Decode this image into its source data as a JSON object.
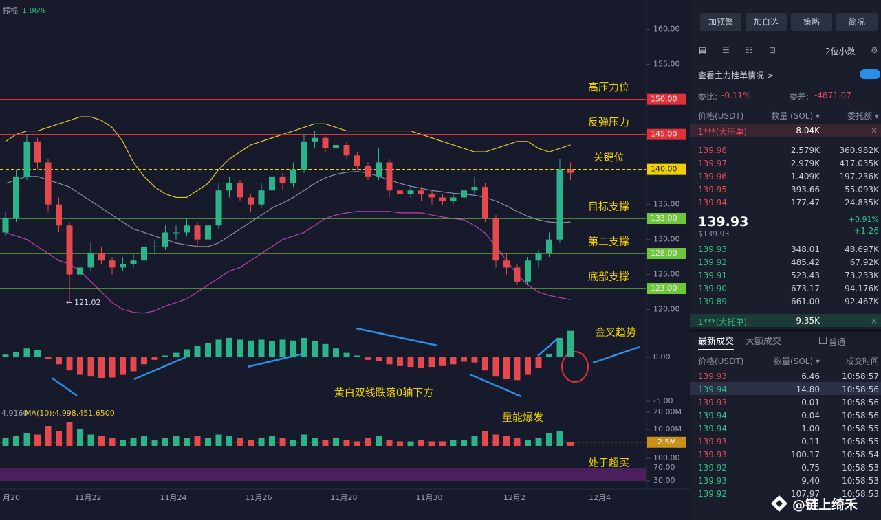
{
  "header": {
    "amplitude_label": "振幅",
    "amplitude": "1.86%"
  },
  "chart_data": [
    {
      "type": "candlestick",
      "candles": [
        [
          131,
          134,
          130.5,
          133
        ],
        [
          133,
          140,
          132.5,
          139
        ],
        [
          139,
          145,
          138.5,
          144
        ],
        [
          144,
          144.5,
          140,
          141
        ],
        [
          141,
          141.5,
          134,
          135
        ],
        [
          135,
          136,
          131,
          132
        ],
        [
          132,
          132.5,
          121.02,
          125
        ],
        [
          125,
          127,
          123.5,
          126
        ],
        [
          126,
          129.5,
          125.5,
          128
        ],
        [
          128,
          129,
          126.5,
          127
        ],
        [
          127,
          127.5,
          125,
          126
        ],
        [
          126,
          127.5,
          125.5,
          126.5
        ],
        [
          126.5,
          128,
          126,
          127
        ],
        [
          127,
          130,
          126.5,
          129
        ],
        [
          129,
          130,
          128,
          129
        ],
        [
          129,
          132,
          128.5,
          131
        ],
        [
          131,
          132,
          130,
          131
        ],
        [
          131,
          133,
          130.5,
          132
        ],
        [
          132,
          132.5,
          129,
          130
        ],
        [
          130,
          133,
          129.5,
          132
        ],
        [
          132,
          138,
          131.5,
          137
        ],
        [
          137,
          139,
          136,
          138
        ],
        [
          138,
          138.5,
          135.5,
          136
        ],
        [
          136,
          136.5,
          134,
          135
        ],
        [
          135,
          138,
          134.5,
          137
        ],
        [
          137,
          140,
          136.5,
          139
        ],
        [
          139,
          139.5,
          137,
          138
        ],
        [
          138,
          141,
          137.5,
          140
        ],
        [
          140,
          145,
          139.5,
          144
        ],
        [
          144,
          145.5,
          143,
          144.5
        ],
        [
          144.5,
          145,
          142.5,
          143
        ],
        [
          143,
          144.5,
          142,
          143.5
        ],
        [
          143.5,
          144,
          141.5,
          142
        ],
        [
          142,
          142.5,
          140,
          140.5
        ],
        [
          140.5,
          141,
          138.5,
          139
        ],
        [
          139,
          143,
          138.5,
          141
        ],
        [
          141,
          141.5,
          136,
          137
        ],
        [
          137,
          137.5,
          135.5,
          136.5
        ],
        [
          136.5,
          137.5,
          136,
          137
        ],
        [
          137,
          137.5,
          135.5,
          136.5
        ],
        [
          136.5,
          137,
          135,
          136
        ],
        [
          136,
          136.5,
          135,
          135.5
        ],
        [
          135.5,
          136.5,
          135,
          136
        ],
        [
          136,
          138,
          135.5,
          137
        ],
        [
          137,
          139,
          136.5,
          137.5
        ],
        [
          137.5,
          138,
          132.5,
          133
        ],
        [
          133,
          133.5,
          126,
          127
        ],
        [
          127,
          128,
          125,
          126
        ],
        [
          126,
          126.5,
          123.5,
          124
        ],
        [
          124,
          127.5,
          123.5,
          127
        ],
        [
          127,
          128.5,
          126,
          128
        ],
        [
          128,
          131,
          127.5,
          130
        ],
        [
          130,
          141.5,
          129.5,
          140
        ],
        [
          140,
          141,
          138.5,
          139.5
        ]
      ],
      "up_color": "#2bb38a",
      "down_color": "#e5484d",
      "series": [
        {
          "color": "#e8c832",
          "values": [
            144,
            145,
            145.5,
            145.5,
            146,
            146.5,
            147,
            147.5,
            147.5,
            147,
            146,
            144,
            141,
            139,
            137.5,
            136.5,
            136,
            136,
            137,
            138,
            140,
            141.5,
            142.5,
            143.5,
            144,
            144.5,
            145,
            145.5,
            146,
            146.5,
            146.5,
            146,
            145.5,
            145.5,
            145.5,
            145.5,
            145.5,
            145.5,
            145.5,
            145,
            144.5,
            144,
            143.5,
            143,
            142.5,
            142.5,
            143,
            143.5,
            144,
            144,
            143,
            142.5,
            143,
            143.5
          ]
        },
        {
          "color": "#8c8fa8",
          "values": [
            138,
            138.5,
            139,
            139,
            138.5,
            138,
            137.5,
            136.5,
            135.5,
            134.5,
            133.5,
            132.5,
            131.5,
            131,
            130.5,
            130,
            129.5,
            129.2,
            129,
            129,
            129.5,
            130.5,
            131.5,
            132.5,
            133.5,
            134.5,
            135.2,
            136,
            137,
            138,
            138.8,
            139.3,
            139.6,
            139.7,
            139.5,
            139,
            138.5,
            138,
            137.6,
            137.3,
            137,
            136.8,
            136.6,
            136.5,
            136.3,
            136,
            135.5,
            134.8,
            134,
            133.3,
            132.8,
            132.5,
            132.4,
            132.5
          ]
        },
        {
          "color": "#c040b0",
          "values": [
            131,
            130.5,
            130,
            129,
            128,
            127,
            126.5,
            125.5,
            124,
            122.5,
            121,
            120,
            119.6,
            119.5,
            119.8,
            120.5,
            121,
            121.5,
            122.5,
            123.5,
            124.5,
            125.5,
            126,
            127,
            128,
            129,
            130,
            130.5,
            131,
            132,
            133,
            133.5,
            133.8,
            134,
            134,
            134,
            134,
            133.8,
            133.8,
            133.8,
            133.5,
            133.2,
            133,
            132.8,
            132,
            130.9,
            129,
            127,
            125,
            123.5,
            122.5,
            122,
            121.7,
            121.4
          ]
        }
      ],
      "ylim": [
        118.1,
        163.4
      ],
      "yticks": [
        {
          "value": 160,
          "label": "160.00"
        },
        {
          "value": 155,
          "label": "155.00"
        },
        {
          "value": 135,
          "label": "135.00"
        },
        {
          "value": 130,
          "label": "130.00"
        },
        {
          "value": 125,
          "label": "125.00"
        },
        {
          "value": 120,
          "label": "120.00"
        }
      ],
      "levels": [
        {
          "value": 150,
          "label": "150.00",
          "note": "高压力位",
          "color": "#e0303a"
        },
        {
          "value": 145,
          "label": "145.00",
          "note": "反弹压力",
          "color": "#e0303a"
        },
        {
          "value": 140,
          "label": "140.00",
          "note": "关键位",
          "color": "#f0d000",
          "dashed": true
        },
        {
          "value": 133,
          "label": "133.00",
          "note": "目标支撑",
          "color": "#6cc83a"
        },
        {
          "value": 128,
          "label": "128.00",
          "note": "第二支撑",
          "color": "#6cc83a"
        },
        {
          "value": 123,
          "label": "123.00",
          "note": "底部支撑",
          "color": "#6cc83a"
        }
      ],
      "xlabels": [
        "月20",
        "11月22",
        "11月24",
        "11月26",
        "11月28",
        "11月30",
        "12月2",
        "12月4"
      ]
    },
    {
      "type": "bar",
      "values": [
        0.3,
        0.6,
        1.0,
        0.8,
        -0.2,
        -0.8,
        -1.5,
        -2.0,
        -2.2,
        -2.4,
        -2.3,
        -2.0,
        -1.6,
        -0.8,
        -0.3,
        0.2,
        0.5,
        0.9,
        1.3,
        1.6,
        2.0,
        2.2,
        2.0,
        1.9,
        2.0,
        1.8,
        2.0,
        1.9,
        2.2,
        1.8,
        1.5,
        1.0,
        0.5,
        0.2,
        -0.3,
        -0.4,
        -0.8,
        -1.0,
        -1.1,
        -1.2,
        -1.1,
        -1.0,
        -0.8,
        -0.5,
        -0.6,
        -1.5,
        -2.2,
        -2.5,
        -2.6,
        -2.0,
        -1.2,
        0.4,
        2.2,
        3.0
      ],
      "up_color": "#2bb38a",
      "down_color": "#e5484d",
      "ylim": [
        -5.47,
        3.52
      ],
      "yticks": [
        {
          "value": 0,
          "label": "0.00"
        },
        {
          "value": -5,
          "label": "-5.00"
        }
      ],
      "notes": [
        "金叉趋势",
        "黄白双线跌落0轴下方"
      ]
    },
    {
      "type": "bar",
      "values": [
        5,
        6,
        8,
        7,
        12,
        9,
        14,
        10,
        7,
        6,
        5,
        4,
        5,
        6,
        4,
        5,
        6,
        5,
        6,
        5,
        7,
        6,
        5,
        4,
        5,
        6,
        5,
        4,
        7,
        5,
        4,
        5,
        4,
        3,
        5,
        6,
        4,
        3,
        3,
        4,
        3,
        3,
        4,
        4,
        6,
        9,
        7,
        6,
        5,
        4,
        5,
        8,
        9,
        2.5
      ],
      "ylim": [
        0,
        21.6
      ],
      "yticks": [
        {
          "value": 20,
          "label": "20.00M"
        },
        {
          "value": 10,
          "label": "10.00M"
        }
      ],
      "current": {
        "value": 2.5,
        "label": "2.5M"
      },
      "ma_prefix": "4.9160",
      "ma_label": "MA(10):4,998,451.6500",
      "notes": [
        "量能爆发"
      ]
    },
    {
      "type": "band",
      "ylim": [
        19.4,
        114.9
      ],
      "yticks": [
        {
          "value": 100,
          "label": "100.00"
        },
        {
          "value": 70,
          "label": "70.00"
        },
        {
          "value": 30,
          "label": "30.00"
        }
      ],
      "notes": [
        "处于超买"
      ]
    }
  ],
  "toolbar": {
    "buttons": [
      "加预警",
      "加自选",
      "策略",
      "简况"
    ],
    "decimals": "2位小数"
  },
  "order_book": {
    "link": "查看主力挂单情况 >",
    "ratio_label": "委比:",
    "ratio": "-0.11%",
    "diff_label": "委差:",
    "diff": "-4871.07",
    "headers": [
      "价格(USDT)",
      "数量 (SOL) ▾",
      "委托额 ▾"
    ],
    "big_ask": [
      "1***(大压单)",
      "8.04K"
    ],
    "asks": [
      [
        "139.98",
        "2.579K",
        "360.982K"
      ],
      [
        "139.97",
        "2.979K",
        "417.035K"
      ],
      [
        "139.96",
        "1.409K",
        "197.236K"
      ],
      [
        "139.95",
        "393.66",
        "55.093K"
      ],
      [
        "139.94",
        "177.47",
        "24.835K"
      ]
    ],
    "last": "139.93",
    "last_usd": "$139.93",
    "change_pct": "+0.91%",
    "change": "+1.26",
    "bids": [
      [
        "139.93",
        "348.01",
        "48.697K"
      ],
      [
        "139.92",
        "485.42",
        "67.92K"
      ],
      [
        "139.91",
        "523.43",
        "73.233K"
      ],
      [
        "139.90",
        "673.17",
        "94.176K"
      ],
      [
        "139.89",
        "661.00",
        "92.467K"
      ]
    ],
    "big_bid": [
      "1***(大托单)",
      "9.35K"
    ]
  },
  "trades": {
    "tabs": [
      "最新成交",
      "大额成交"
    ],
    "filter": "普通",
    "headers": [
      "价格(USDT)",
      "数量(SOL) ▾",
      "成交时间"
    ],
    "rows": [
      [
        "139.93",
        "6.46",
        "10:58:57"
      ],
      [
        "139.94",
        "14.80",
        "10:58:56"
      ],
      [
        "139.93",
        "0.01",
        "10:58:56"
      ],
      [
        "139.94",
        "0.04",
        "10:58:56"
      ],
      [
        "139.94",
        "1.00",
        "10:58:55"
      ],
      [
        "139.93",
        "0.11",
        "10:58:55"
      ],
      [
        "139.93",
        "100.17",
        "10:58:54"
      ],
      [
        "139.92",
        "0.75",
        "10:58:53"
      ],
      [
        "139.93",
        "9.40",
        "10:58:53"
      ],
      [
        "139.92",
        "107.97",
        "10:58:53"
      ]
    ],
    "sides": [
      "sell",
      "buy",
      "sell",
      "buy",
      "buy",
      "sell",
      "sell",
      "buy",
      "buy",
      "buy"
    ]
  },
  "watermark": "@链上绮禾"
}
